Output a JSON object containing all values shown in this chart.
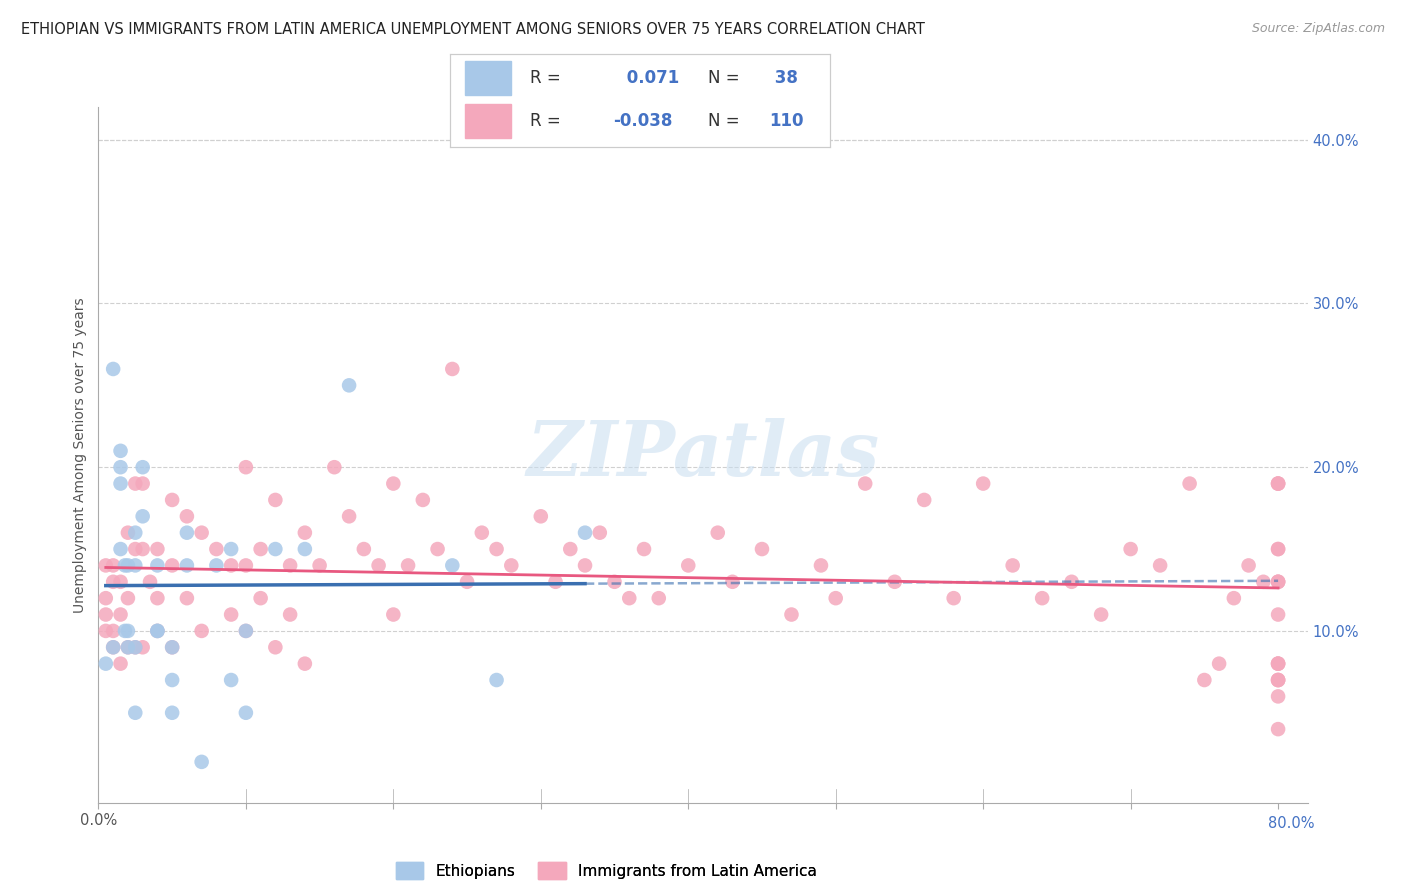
{
  "title": "ETHIOPIAN VS IMMIGRANTS FROM LATIN AMERICA UNEMPLOYMENT AMONG SENIORS OVER 75 YEARS CORRELATION CHART",
  "source": "Source: ZipAtlas.com",
  "ylabel": "Unemployment Among Seniors over 75 years",
  "xlim": [
    0.0,
    0.82
  ],
  "ylim": [
    -0.005,
    0.42
  ],
  "right_yticks": [
    0.1,
    0.2,
    0.3,
    0.4
  ],
  "right_yticklabels": [
    "10.0%",
    "20.0%",
    "30.0%",
    "40.0%"
  ],
  "ethiopian_R": 0.071,
  "ethiopian_N": 38,
  "latin_R": -0.038,
  "latin_N": 110,
  "blue_color": "#a8c8e8",
  "pink_color": "#f4a8bc",
  "blue_line_color": "#3a6fb0",
  "pink_line_color": "#e85880",
  "ethiopian_x": [
    0.005,
    0.01,
    0.01,
    0.015,
    0.015,
    0.015,
    0.015,
    0.018,
    0.018,
    0.02,
    0.02,
    0.02,
    0.025,
    0.025,
    0.025,
    0.025,
    0.03,
    0.03,
    0.04,
    0.04,
    0.04,
    0.05,
    0.05,
    0.05,
    0.06,
    0.06,
    0.07,
    0.08,
    0.09,
    0.09,
    0.1,
    0.1,
    0.12,
    0.14,
    0.17,
    0.24,
    0.27,
    0.33
  ],
  "ethiopian_y": [
    0.08,
    0.09,
    0.26,
    0.21,
    0.2,
    0.19,
    0.15,
    0.14,
    0.1,
    0.09,
    0.14,
    0.1,
    0.16,
    0.14,
    0.09,
    0.05,
    0.2,
    0.17,
    0.14,
    0.1,
    0.1,
    0.09,
    0.07,
    0.05,
    0.16,
    0.14,
    0.02,
    0.14,
    0.15,
    0.07,
    0.1,
    0.05,
    0.15,
    0.15,
    0.25,
    0.14,
    0.07,
    0.16
  ],
  "latin_x": [
    0.005,
    0.005,
    0.005,
    0.005,
    0.01,
    0.01,
    0.01,
    0.01,
    0.015,
    0.015,
    0.015,
    0.02,
    0.02,
    0.02,
    0.025,
    0.025,
    0.025,
    0.03,
    0.03,
    0.03,
    0.035,
    0.04,
    0.04,
    0.04,
    0.05,
    0.05,
    0.05,
    0.06,
    0.06,
    0.07,
    0.07,
    0.08,
    0.09,
    0.09,
    0.1,
    0.1,
    0.1,
    0.11,
    0.11,
    0.12,
    0.12,
    0.13,
    0.13,
    0.14,
    0.14,
    0.15,
    0.16,
    0.17,
    0.18,
    0.19,
    0.2,
    0.2,
    0.21,
    0.22,
    0.23,
    0.24,
    0.25,
    0.26,
    0.27,
    0.28,
    0.3,
    0.31,
    0.32,
    0.33,
    0.34,
    0.35,
    0.36,
    0.37,
    0.38,
    0.4,
    0.42,
    0.43,
    0.45,
    0.47,
    0.49,
    0.5,
    0.52,
    0.54,
    0.56,
    0.58,
    0.6,
    0.62,
    0.64,
    0.66,
    0.68,
    0.7,
    0.72,
    0.74,
    0.75,
    0.76,
    0.77,
    0.78,
    0.79,
    0.8,
    0.8,
    0.8,
    0.8,
    0.8,
    0.8,
    0.8,
    0.8,
    0.8,
    0.8,
    0.8,
    0.8,
    0.8,
    0.8,
    0.8,
    0.8,
    0.8
  ],
  "latin_y": [
    0.14,
    0.12,
    0.11,
    0.1,
    0.14,
    0.13,
    0.1,
    0.09,
    0.13,
    0.11,
    0.08,
    0.16,
    0.12,
    0.09,
    0.19,
    0.15,
    0.09,
    0.19,
    0.15,
    0.09,
    0.13,
    0.15,
    0.12,
    0.1,
    0.18,
    0.14,
    0.09,
    0.17,
    0.12,
    0.16,
    0.1,
    0.15,
    0.14,
    0.11,
    0.2,
    0.14,
    0.1,
    0.15,
    0.12,
    0.18,
    0.09,
    0.14,
    0.11,
    0.16,
    0.08,
    0.14,
    0.2,
    0.17,
    0.15,
    0.14,
    0.19,
    0.11,
    0.14,
    0.18,
    0.15,
    0.26,
    0.13,
    0.16,
    0.15,
    0.14,
    0.17,
    0.13,
    0.15,
    0.14,
    0.16,
    0.13,
    0.12,
    0.15,
    0.12,
    0.14,
    0.16,
    0.13,
    0.15,
    0.11,
    0.14,
    0.12,
    0.19,
    0.13,
    0.18,
    0.12,
    0.19,
    0.14,
    0.12,
    0.13,
    0.11,
    0.15,
    0.14,
    0.19,
    0.07,
    0.08,
    0.12,
    0.14,
    0.13,
    0.19,
    0.15,
    0.08,
    0.07,
    0.06,
    0.11,
    0.13,
    0.08,
    0.19,
    0.13,
    0.04,
    0.15,
    0.07,
    0.19,
    0.13,
    0.08,
    0.07
  ],
  "watermark": "ZIPatlas",
  "grid_color": "#d0d0d0",
  "background_color": "#ffffff",
  "title_fontsize": 10.5,
  "axis_label_fontsize": 10,
  "tick_fontsize": 10.5,
  "legend_fontsize": 12,
  "blue_text_color": "#4472c4",
  "source_color": "#999999"
}
